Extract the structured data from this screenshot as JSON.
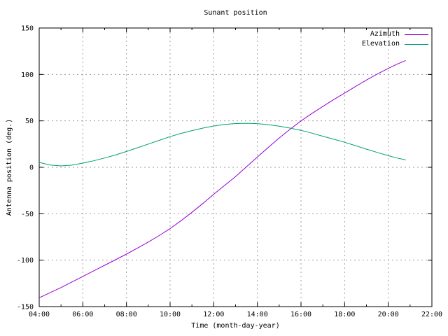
{
  "chart_data": {
    "type": "line",
    "title": "Sunant position",
    "xlabel": "Time (month-day-year)",
    "ylabel": "Antenna position (deg.)",
    "grid": true,
    "legend_position": "top-right-inside",
    "background_color": "#ffffff",
    "border_color": "#000000",
    "grid_color": "#9e9e9e",
    "x_axis": {
      "range_hours": [
        4,
        22
      ],
      "major_tick_hours": [
        4,
        6,
        8,
        10,
        12,
        14,
        16,
        18,
        20,
        22
      ],
      "major_tick_labels": [
        "04:00",
        "06:00",
        "08:00",
        "10:00",
        "12:00",
        "14:00",
        "16:00",
        "18:00",
        "20:00",
        "22:00"
      ],
      "minor_tick_hours": [
        5,
        7,
        9,
        11,
        13,
        15,
        17,
        19,
        21
      ]
    },
    "y_axis": {
      "range": [
        -150,
        150
      ],
      "tick_values": [
        -150,
        -100,
        -50,
        0,
        50,
        100,
        150
      ],
      "tick_labels": [
        "-150",
        "-100",
        "-50",
        "0",
        "50",
        "100",
        "150"
      ]
    },
    "x_hours": [
      4,
      4.5,
      5,
      5.5,
      6,
      6.5,
      7,
      7.5,
      8,
      8.5,
      9,
      9.5,
      10,
      10.5,
      11,
      11.5,
      12,
      12.5,
      13,
      13.5,
      14,
      14.5,
      15,
      15.5,
      16,
      16.5,
      17,
      17.5,
      18,
      18.5,
      19,
      19.5,
      20,
      20.4,
      20.8
    ],
    "series": [
      {
        "name": "Azimuth",
        "color": "#9400d3",
        "values": [
          -140.5,
          -135,
          -129.5,
          -123.5,
          -117.5,
          -111.5,
          -105.5,
          -99.5,
          -93.5,
          -87,
          -80.5,
          -73.5,
          -66,
          -57.5,
          -48.5,
          -39,
          -29,
          -19.5,
          -10,
          0.5,
          11,
          21.5,
          31.5,
          41,
          50,
          58,
          65.5,
          73,
          80,
          87,
          94,
          100.5,
          106.5,
          111,
          115
        ]
      },
      {
        "name": "Elevation",
        "color": "#009e73",
        "values": [
          5.3,
          2.5,
          1.5,
          2.3,
          4.5,
          7,
          10,
          13.3,
          17,
          21,
          25,
          29,
          33,
          36.5,
          39.5,
          42.2,
          44.5,
          46.2,
          47.1,
          47.4,
          47,
          45.9,
          44.3,
          42.2,
          39.8,
          36.8,
          33.5,
          30.2,
          27,
          23.3,
          19.5,
          16,
          12.5,
          10,
          8
        ]
      }
    ]
  }
}
